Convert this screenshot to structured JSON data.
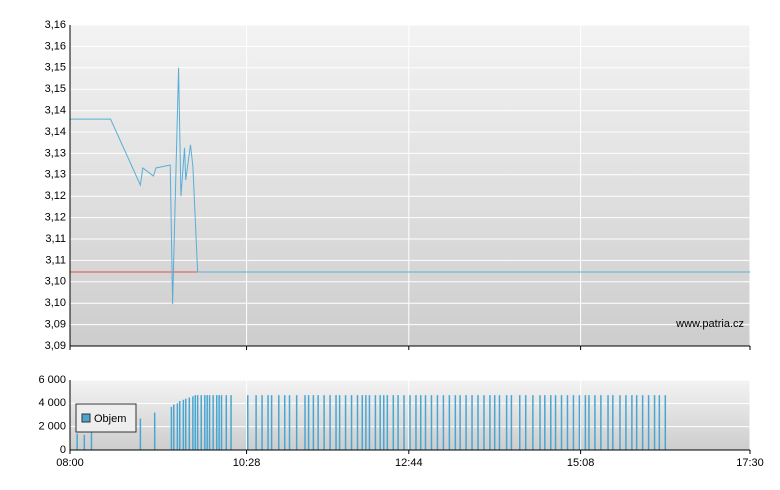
{
  "chart_data": [
    {
      "type": "line",
      "x": [
        480,
        514,
        539,
        541,
        550,
        552,
        564,
        566,
        571,
        573,
        576,
        577,
        581,
        583,
        587,
        1050
      ],
      "values": [
        3.14,
        3.14,
        3.1246,
        3.1286,
        3.1267,
        3.1286,
        3.1293,
        3.0968,
        3.152,
        3.122,
        3.1333,
        3.1258,
        3.134,
        3.129,
        3.1043,
        3.1043
      ],
      "color": "#5aaed6",
      "reference_line": 3.1043,
      "reference_color": "#e0534a",
      "xlim": [
        480,
        1050
      ],
      "ylim": [
        3.087,
        3.162
      ],
      "yticks": [
        {
          "value": 3.087,
          "label": "3,09"
        },
        {
          "value": 3.092,
          "label": "3,09"
        },
        {
          "value": 3.097,
          "label": "3,10"
        },
        {
          "value": 3.102,
          "label": "3,10"
        },
        {
          "value": 3.107,
          "label": "3,11"
        },
        {
          "value": 3.112,
          "label": "3,11"
        },
        {
          "value": 3.117,
          "label": "3,12"
        },
        {
          "value": 3.122,
          "label": "3,12"
        },
        {
          "value": 3.127,
          "label": "3,13"
        },
        {
          "value": 3.132,
          "label": "3,13"
        },
        {
          "value": 3.137,
          "label": "3,14"
        },
        {
          "value": 3.142,
          "label": "3,14"
        },
        {
          "value": 3.147,
          "label": "3,15"
        },
        {
          "value": 3.152,
          "label": "3,15"
        },
        {
          "value": 3.157,
          "label": "3,16"
        },
        {
          "value": 3.162,
          "label": "3,16"
        }
      ],
      "grid": true,
      "annotation": "www.patria.cz"
    },
    {
      "type": "bar",
      "x": [
        486,
        492,
        498,
        539,
        551,
        565,
        567,
        570,
        572,
        575,
        577,
        580,
        583,
        585,
        587,
        590,
        593,
        595,
        597,
        600,
        603,
        605,
        607,
        611,
        615,
        629,
        636,
        641,
        646,
        649,
        655,
        660,
        664,
        670,
        677,
        680,
        684,
        688,
        693,
        698,
        703,
        706,
        711,
        716,
        721,
        725,
        728,
        731,
        736,
        740,
        743,
        746,
        751,
        755,
        760,
        765,
        770,
        774,
        778,
        783,
        788,
        793,
        798,
        803,
        807,
        812,
        817,
        822,
        827,
        832,
        836,
        840,
        846,
        850,
        857,
        862,
        868,
        874,
        878,
        883,
        887,
        892,
        897,
        902,
        907,
        912,
        915,
        920,
        925,
        931,
        935,
        941,
        946,
        951,
        955,
        960,
        965,
        970,
        974,
        979
      ],
      "series": [
        {
          "name": "Objem",
          "color": "#4aa6d0",
          "values": [
            1400,
            1300,
            1500,
            2700,
            3200,
            3700,
            3900,
            4000,
            4200,
            4300,
            4400,
            4500,
            4600,
            4700,
            4700,
            4700,
            4700,
            4700,
            4700,
            4700,
            4700,
            4700,
            4700,
            4700,
            4700,
            4700,
            4700,
            4700,
            4700,
            4700,
            4700,
            4700,
            4700,
            4700,
            4700,
            4700,
            4700,
            4700,
            4700,
            4700,
            4700,
            4700,
            4700,
            4700,
            4700,
            4700,
            4700,
            4700,
            4700,
            4700,
            4700,
            4700,
            4700,
            4700,
            4700,
            4700,
            4700,
            4700,
            4700,
            4700,
            4700,
            4700,
            4700,
            4700,
            4700,
            4700,
            4700,
            4700,
            4700,
            4700,
            4700,
            4700,
            4700,
            4700,
            4700,
            4700,
            4700,
            4700,
            4700,
            4700,
            4700,
            4700,
            4700,
            4700,
            4700,
            4700,
            4700,
            4700,
            4700,
            4700,
            4700,
            4700,
            4700,
            4700,
            4700,
            4700,
            4700,
            4700,
            4700,
            4700
          ]
        }
      ],
      "xlim": [
        480,
        1050
      ],
      "xticks": [
        {
          "value": 480,
          "label": "08:00"
        },
        {
          "value": 628,
          "label": "10:28"
        },
        {
          "value": 764,
          "label": "12:44"
        },
        {
          "value": 908,
          "label": "15:08"
        },
        {
          "value": 1050,
          "label": "17:30"
        }
      ],
      "ylim": [
        0,
        6000
      ],
      "yticks": [
        0,
        {
          "value": 2000,
          "label": "2 000"
        },
        {
          "value": 4000,
          "label": "4 000"
        },
        {
          "value": 6000,
          "label": "6 000"
        }
      ],
      "grid": true,
      "legend": "upper left"
    }
  ]
}
